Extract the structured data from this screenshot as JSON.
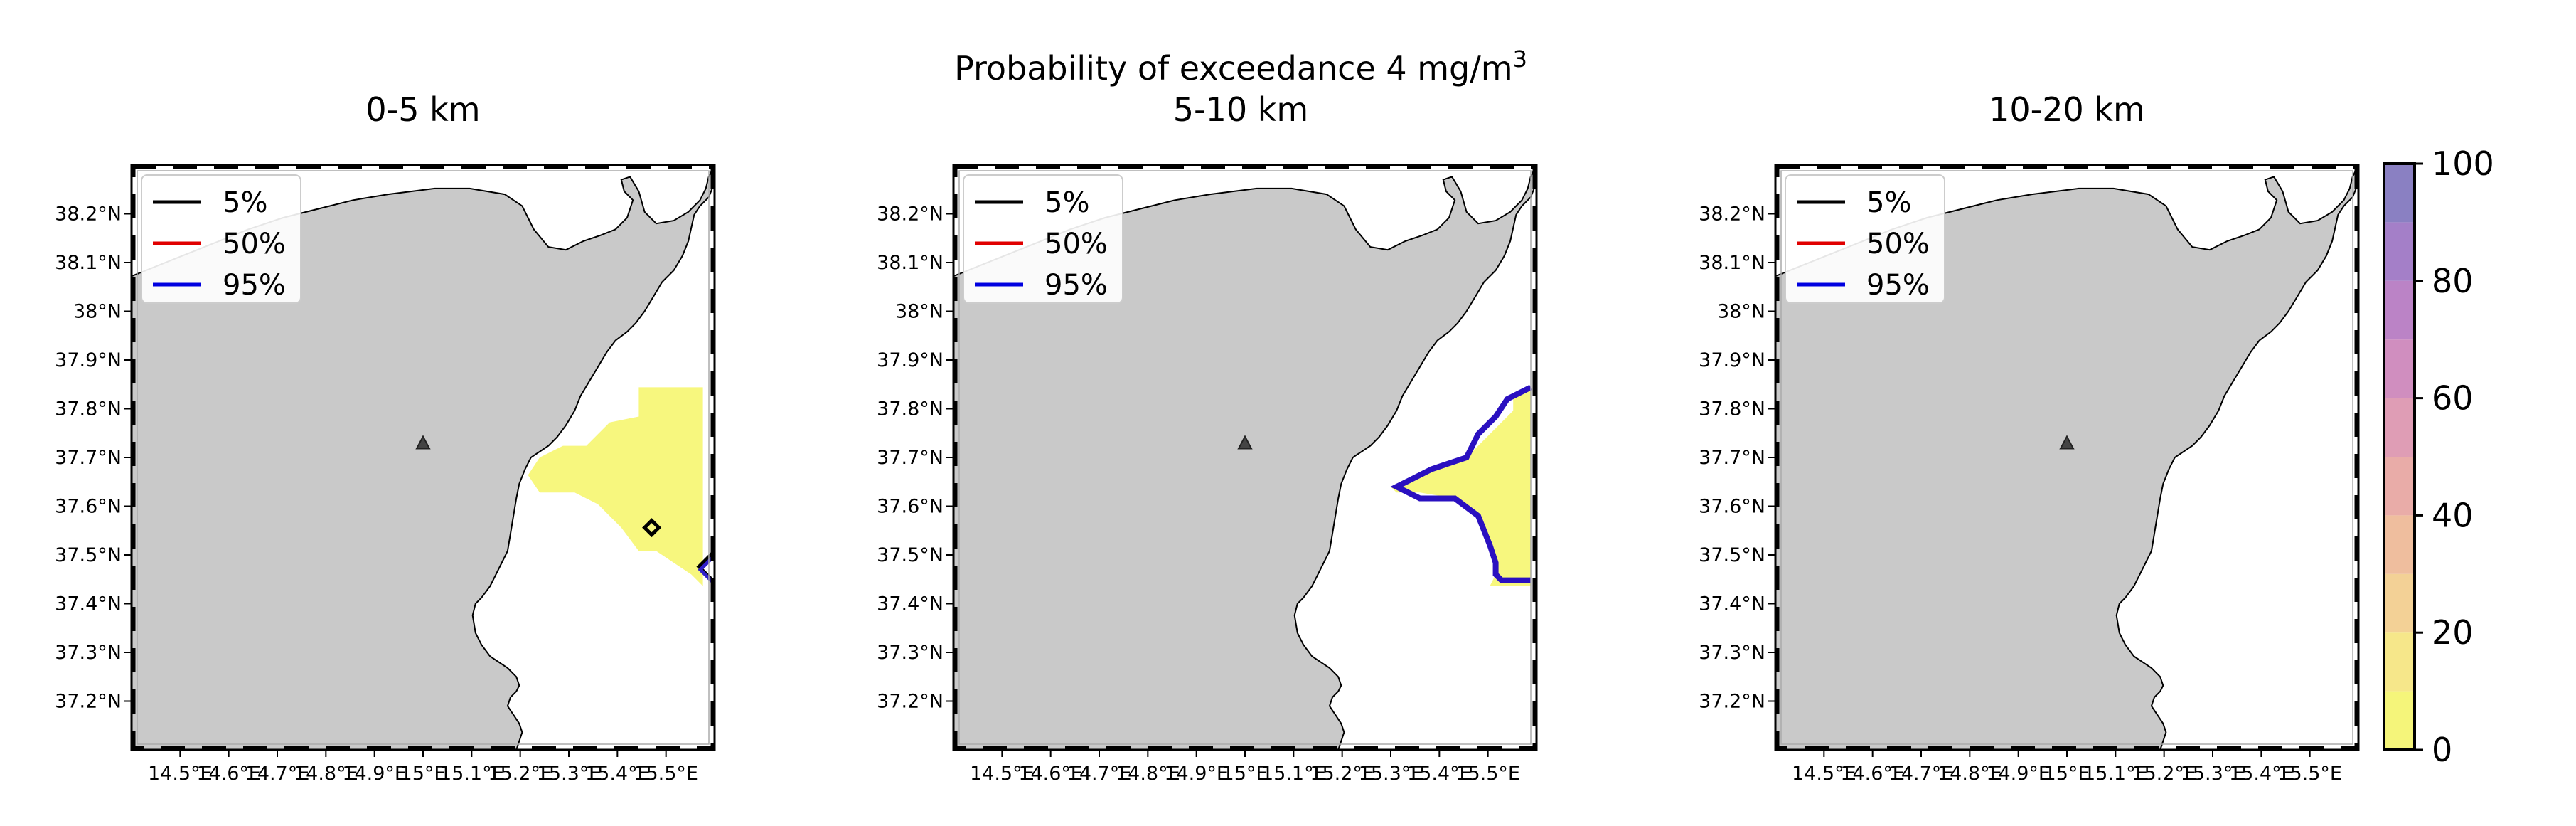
{
  "suptitle": {
    "main": "Probability of exceedance 4 mg/m",
    "superscript": "3",
    "second_line": "5-10 km"
  },
  "chart_data": [
    {
      "type": "contour-map",
      "title": "0-5 km",
      "lon_range": [
        14.4,
        15.6
      ],
      "lat_range": [
        37.1,
        38.3
      ],
      "xticks": [
        "14.5°E",
        "14.6°E",
        "14.7°E",
        "14.8°E",
        "14.9°E",
        "15°E",
        "15.1°E",
        "15.2°E",
        "15.3°E",
        "15.4°E",
        "15.5°E"
      ],
      "yticks": [
        "37.2°N",
        "37.3°N",
        "37.4°N",
        "37.5°N",
        "37.6°N",
        "37.7°N",
        "37.8°N",
        "37.9°N",
        "38°N",
        "38.1°N",
        "38.2°N"
      ],
      "legend": [
        {
          "label": "5%",
          "color": "#000000"
        },
        {
          "label": "50%",
          "color": "#e00000"
        },
        {
          "label": "95%",
          "color": "#0000e0"
        }
      ],
      "legend_position": "upper-left",
      "vent_marker": {
        "lon": 15.0,
        "lat": 37.73
      }
    },
    {
      "type": "contour-map",
      "title": "5-10 km",
      "lon_range": [
        14.4,
        15.6
      ],
      "lat_range": [
        37.1,
        38.3
      ],
      "xticks": [
        "14.5°E",
        "14.6°E",
        "14.7°E",
        "14.8°E",
        "14.9°E",
        "15°E",
        "15.1°E",
        "15.2°E",
        "15.3°E",
        "15.4°E",
        "15.5°E"
      ],
      "yticks": [
        "37.2°N",
        "37.3°N",
        "37.4°N",
        "37.5°N",
        "37.6°N",
        "37.7°N",
        "37.8°N",
        "37.9°N",
        "38°N",
        "38.1°N",
        "38.2°N"
      ],
      "legend": [
        {
          "label": "5%",
          "color": "#000000"
        },
        {
          "label": "50%",
          "color": "#e00000"
        },
        {
          "label": "95%",
          "color": "#0000e0"
        }
      ],
      "legend_position": "upper-left",
      "vent_marker": {
        "lon": 15.0,
        "lat": 37.73
      }
    },
    {
      "type": "contour-map",
      "title": "10-20 km",
      "lon_range": [
        14.4,
        15.6
      ],
      "lat_range": [
        37.1,
        38.3
      ],
      "xticks": [
        "14.5°E",
        "14.6°E",
        "14.7°E",
        "14.8°E",
        "14.9°E",
        "15°E",
        "15.1°E",
        "15.2°E",
        "15.3°E",
        "15.4°E",
        "15.5°E"
      ],
      "yticks": [
        "37.2°N",
        "37.3°N",
        "37.4°N",
        "37.5°N",
        "37.6°N",
        "37.7°N",
        "37.8°N",
        "37.9°N",
        "38°N",
        "38.1°N",
        "38.2°N"
      ],
      "legend": [
        {
          "label": "5%",
          "color": "#000000"
        },
        {
          "label": "50%",
          "color": "#e00000"
        },
        {
          "label": "95%",
          "color": "#0000e0"
        }
      ],
      "legend_position": "upper-left",
      "vent_marker": {
        "lon": 15.0,
        "lat": 37.73
      }
    }
  ],
  "colorbar": {
    "range": [
      0,
      100
    ],
    "ticks": [
      "0",
      "20",
      "40",
      "60",
      "80",
      "100"
    ],
    "tick_values": [
      0,
      20,
      40,
      60,
      80,
      100
    ],
    "bands": [
      {
        "from": 0,
        "to": 10,
        "color": "#f5f57a"
      },
      {
        "from": 10,
        "to": 20,
        "color": "#f6e78a"
      },
      {
        "from": 20,
        "to": 30,
        "color": "#f3d196"
      },
      {
        "from": 30,
        "to": 40,
        "color": "#efbe9e"
      },
      {
        "from": 40,
        "to": 50,
        "color": "#e9aca8"
      },
      {
        "from": 50,
        "to": 60,
        "color": "#df9db5"
      },
      {
        "from": 60,
        "to": 70,
        "color": "#d08ebf"
      },
      {
        "from": 70,
        "to": 80,
        "color": "#bb83c6"
      },
      {
        "from": 80,
        "to": 90,
        "color": "#a47fc8"
      },
      {
        "from": 90,
        "to": 100,
        "color": "#8a80c2"
      }
    ]
  },
  "colors": {
    "land": "#c9c9c9",
    "sea": "#ffffff",
    "plume": "#f7f77e"
  }
}
